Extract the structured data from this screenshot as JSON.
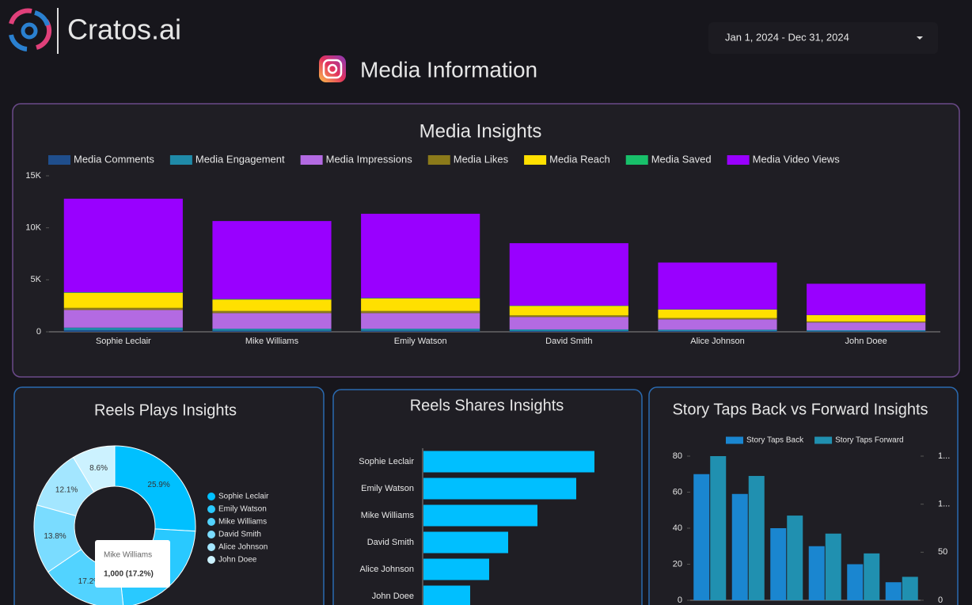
{
  "header": {
    "brand": "Cratos.ai",
    "page_title": "Media Information",
    "date_range": "Jan 1, 2024 - Dec 31, 2024"
  },
  "chart_data": [
    {
      "type": "bar",
      "stacked": true,
      "title": "Media Insights",
      "categories": [
        "Sophie Leclair",
        "Mike Williams",
        "Emily Watson",
        "David Smith",
        "Alice Johnson",
        "John Doee"
      ],
      "series": [
        {
          "name": "Media Comments",
          "color": "#1f4e8c",
          "values": [
            150,
            100,
            100,
            80,
            70,
            50
          ]
        },
        {
          "name": "Media Engagement",
          "color": "#1f8aa8",
          "values": [
            250,
            200,
            200,
            150,
            130,
            100
          ]
        },
        {
          "name": "Media Impressions",
          "color": "#b36ae2",
          "values": [
            1700,
            1500,
            1500,
            1200,
            1000,
            750
          ]
        },
        {
          "name": "Media Likes",
          "color": "#8b7a1a",
          "values": [
            200,
            200,
            200,
            150,
            130,
            100
          ]
        },
        {
          "name": "Media Reach",
          "color": "#ffe000",
          "values": [
            1450,
            1100,
            1200,
            900,
            800,
            600
          ]
        },
        {
          "name": "Media Saved",
          "color": "#18c06a",
          "values": [
            50,
            50,
            50,
            40,
            30,
            20
          ]
        },
        {
          "name": "Media Video Views",
          "color": "#9900ff",
          "values": [
            9000,
            7500,
            8100,
            6000,
            4500,
            3000
          ]
        }
      ],
      "ylim": [
        0,
        15000
      ],
      "yticks": [
        0,
        {
          "value": 5000,
          "label": "5K"
        },
        {
          "value": 10000,
          "label": "10K"
        },
        {
          "value": 15000,
          "label": "15K"
        }
      ]
    },
    {
      "type": "pie",
      "donut": true,
      "title": "Reels Plays Insights",
      "categories": [
        "Sophie Leclair",
        "Emily Watson",
        "Mike Williams",
        "David Smith",
        "Alice Johnson",
        "John Doee"
      ],
      "values": [
        25.9,
        22.4,
        17.2,
        13.8,
        12.1,
        8.6
      ],
      "value_labels": [
        "25.9%",
        null,
        "17.2%",
        "13.8%",
        "12.1%",
        "8.6%"
      ],
      "colors": [
        "#00c0ff",
        "#29c9ff",
        "#52d3ff",
        "#7adcff",
        "#a3e6ff",
        "#ccf2ff"
      ],
      "tooltip": {
        "title": "Mike Williams",
        "label": "1,000 (17.2%)"
      }
    },
    {
      "type": "bar",
      "orientation": "horizontal",
      "title": "Reels Shares Insights",
      "categories": [
        "Sophie Leclair",
        "Emily Watson",
        "Mike Williams",
        "David Smith",
        "Alice Johnson",
        "John Doee"
      ],
      "values": [
        216,
        193,
        144,
        107,
        83,
        59
      ],
      "color": "#00bfff",
      "xlim": [
        0,
        240
      ]
    },
    {
      "type": "bar",
      "title": "Story Taps Back vs Forward Insights",
      "categories": [
        null,
        null,
        null,
        null,
        null,
        null
      ],
      "series": [
        {
          "name": "Story Taps Back",
          "color": "#1a86d0",
          "values": [
            70,
            59,
            40,
            30,
            20,
            10
          ]
        },
        {
          "name": "Story Taps Forward",
          "color": "#2090b0",
          "values": [
            80,
            69,
            47,
            37,
            26,
            13
          ]
        }
      ],
      "ylim": [
        0,
        80
      ],
      "yticks": [
        0,
        20,
        40,
        60,
        80
      ],
      "y2lim": [
        0,
        150
      ],
      "y2ticks": [
        0,
        50,
        {
          "value": 100,
          "label": "1..."
        },
        {
          "value": 150,
          "label": "1..."
        }
      ]
    }
  ]
}
